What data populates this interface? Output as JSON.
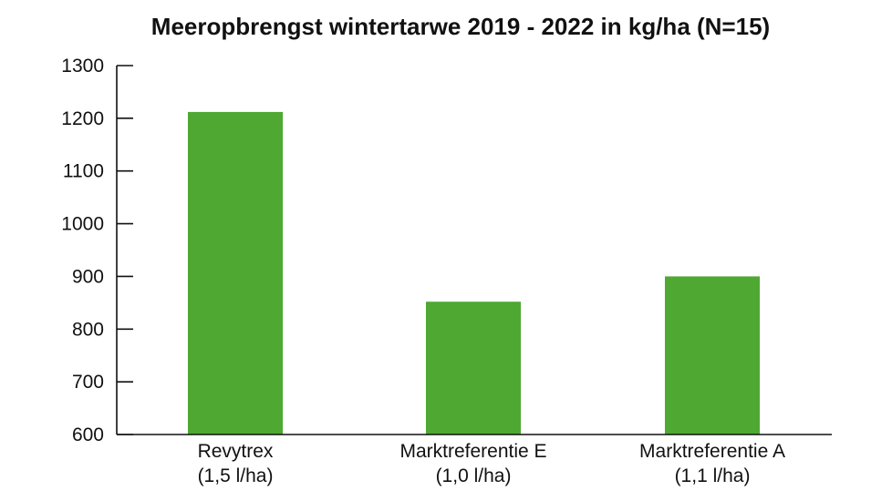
{
  "chart_data": {
    "type": "bar",
    "title": "Meeropbrengst wintertarwe 2019 - 2022 in kg/ha (N=15)",
    "xlabel": "",
    "ylabel": "",
    "categories": [
      [
        "Revytrex",
        "(1,5 l/ha)"
      ],
      [
        "Marktreferentie E",
        "(1,0 l/ha)"
      ],
      [
        "Marktreferentie A",
        "(1,1 l/ha)"
      ]
    ],
    "values": [
      1212,
      852,
      900
    ],
    "ylim": [
      600,
      1300
    ],
    "yticks": [
      600,
      700,
      800,
      900,
      1000,
      1100,
      1200,
      1300
    ],
    "bar_color": "#4ea832",
    "grid": false,
    "legend": "none"
  }
}
